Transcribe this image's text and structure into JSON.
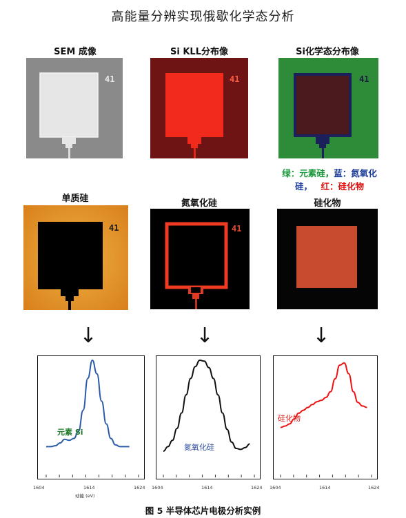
{
  "figure_title": "高能量分辨实现俄歇化学态分析",
  "panels": {
    "sem_label": "SEM 成像",
    "kll_label": "Si KLL分布像",
    "chem_label": "Si化学态分布像",
    "elem_label": "单质硅",
    "nitride_label": "氮氧化硅",
    "silicide_label": "硅化物",
    "chip_number": "41"
  },
  "legend": {
    "green_text": "绿：元素硅，",
    "blue_text_1": "蓝：氮氧化",
    "blue_text_2": "硅，",
    "red_text": "红：硅化物",
    "green_color": "#1a9a3a",
    "blue_color": "#1f3f9a",
    "red_color": "#e01010"
  },
  "arrows": {
    "glyph": "↓"
  },
  "spectra": {
    "x_ticks": [
      "1604",
      "1614",
      "1624"
    ],
    "x_axis_label": "动能 (eV)",
    "plot1_label": "元素 Si",
    "plot2_label": "氮氧化硅",
    "plot3_label": "硅化物"
  },
  "chart_data": [
    {
      "type": "line",
      "xlim": [
        1604,
        1624
      ],
      "xlabel": "动能 (eV)",
      "x": [
        1604,
        1605,
        1606,
        1607,
        1608,
        1609,
        1610,
        1611,
        1612,
        1613,
        1614,
        1615,
        1616,
        1617,
        1618,
        1619,
        1620,
        1621,
        1622
      ],
      "series": [
        {
          "name": "元素 Si",
          "color": "#2a5aa8",
          "values": [
            0.05,
            0.05,
            0.06,
            0.09,
            0.13,
            0.12,
            0.14,
            0.22,
            0.45,
            0.8,
            1.0,
            0.85,
            0.55,
            0.3,
            0.14,
            0.07,
            0.05,
            0.05,
            0.05
          ]
        }
      ]
    },
    {
      "type": "line",
      "xlim": [
        1604,
        1624
      ],
      "xlabel": "",
      "x": [
        1604,
        1605,
        1606,
        1607,
        1608,
        1609,
        1610,
        1611,
        1612,
        1613,
        1614,
        1615,
        1616,
        1617,
        1618,
        1619,
        1620,
        1621,
        1622,
        1623
      ],
      "series": [
        {
          "name": "氮氧化硅",
          "color": "#111111",
          "values": [
            0.0,
            0.05,
            0.12,
            0.25,
            0.42,
            0.62,
            0.8,
            0.93,
            1.0,
            0.99,
            0.92,
            0.8,
            0.62,
            0.42,
            0.24,
            0.1,
            0.03,
            0.02,
            0.04,
            0.08
          ]
        }
      ]
    },
    {
      "type": "line",
      "xlim": [
        1604,
        1624
      ],
      "xlabel": "",
      "x": [
        1604,
        1605,
        1606,
        1607,
        1608,
        1609,
        1610,
        1611,
        1612,
        1613,
        1614,
        1615,
        1616,
        1617,
        1618,
        1619,
        1620,
        1621,
        1622,
        1623
      ],
      "series": [
        {
          "name": "硅化物",
          "color": "#ee1111",
          "values": [
            0.1,
            0.12,
            0.15,
            0.22,
            0.3,
            0.34,
            0.38,
            0.42,
            0.46,
            0.48,
            0.52,
            0.6,
            0.78,
            0.97,
            1.0,
            0.85,
            0.6,
            0.45,
            0.4,
            0.38
          ]
        }
      ]
    }
  ],
  "caption": "图 5 半导体芯片电极分析实例"
}
